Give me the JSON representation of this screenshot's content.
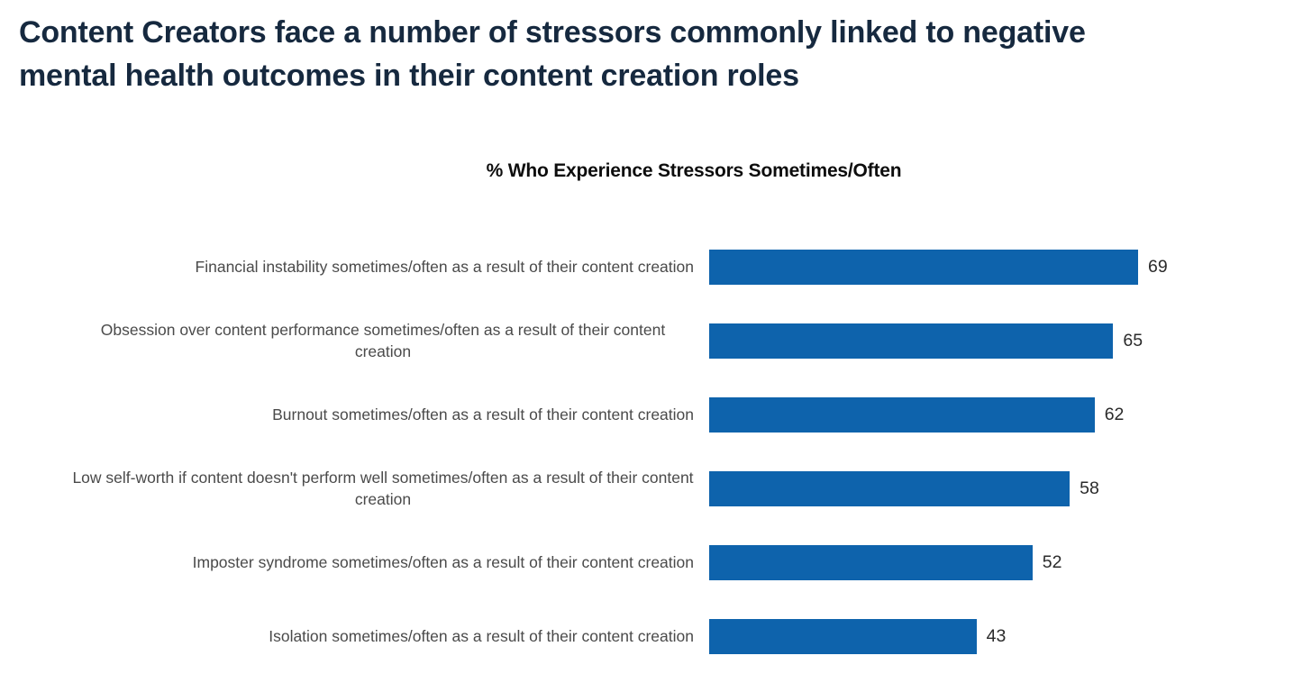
{
  "header": {
    "title": "Content Creators face a number of stressors commonly linked to negative\nmental health outcomes in their content creation roles"
  },
  "chart_data": {
    "type": "bar",
    "orientation": "horizontal",
    "title": "% Who Experience Stressors Sometimes/Often",
    "categories": [
      "Financial instability sometimes/often as a result of their content creation",
      "Obsession over content performance sometimes/often as a result of their content creation",
      "Burnout sometimes/often as a result of their content creation",
      "Low self-worth if content doesn't perform well sometimes/often as a result of their content creation",
      "Imposter syndrome sometimes/often as a result of their content creation",
      "Isolation sometimes/often as a result of their content creation"
    ],
    "values": [
      69,
      65,
      62,
      58,
      52,
      43
    ],
    "value_labels_shown": true,
    "axis_shown": false,
    "gridlines": false,
    "legend": "none",
    "bar_color": "#0e63ac",
    "title_color": "#16293f",
    "label_color": "#4a4a4a",
    "value_label_color": "#2b2b2b"
  }
}
